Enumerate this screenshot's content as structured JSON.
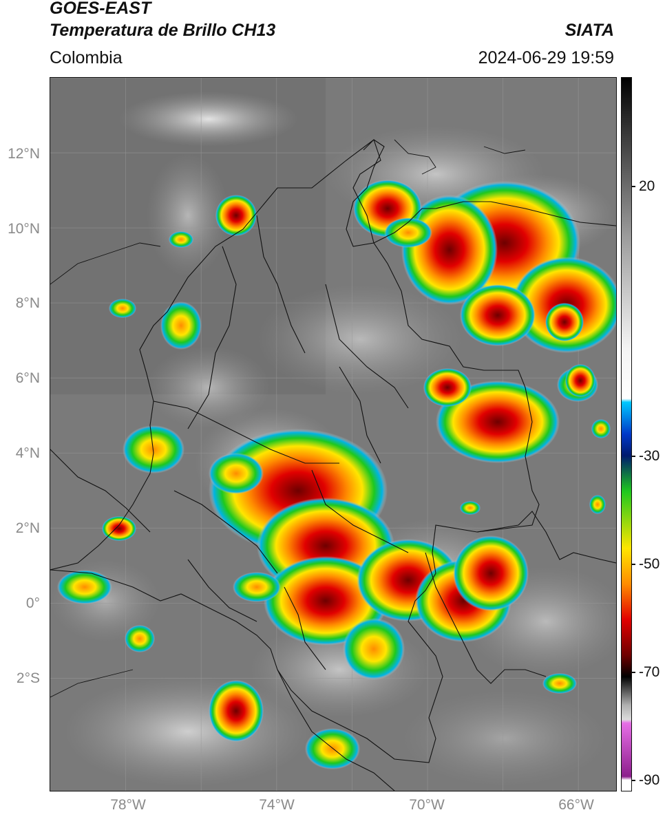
{
  "header": {
    "title_line1": "GOES-EAST",
    "title_line2": "Temperatura de Brillo CH13",
    "region": "Colombia",
    "organization": "SIATA",
    "timestamp": "2024-06-29 19:59"
  },
  "map": {
    "lat_ticks": [
      "12°N",
      "10°N",
      "8°N",
      "6°N",
      "4°N",
      "2°N",
      "0°",
      "2°S"
    ],
    "lon_ticks": [
      "78°W",
      "74°W",
      "70°W",
      "66°W"
    ],
    "lon_range": [
      -80,
      -65
    ],
    "lat_range": [
      -5,
      14
    ],
    "grid": true
  },
  "colorbar": {
    "ticks": [
      "20",
      "-30",
      "-50",
      "-70",
      "-90"
    ],
    "tick_values": [
      20,
      -30,
      -50,
      -70,
      -90
    ],
    "range": [
      -92,
      40
    ],
    "colors": {
      "warm_gray": "#6e6e6e",
      "cold_white": "#f4f4f4",
      "cyan": "#00c8ff",
      "blue": "#0038c8",
      "navy": "#001a6e",
      "green": "#1ec81e",
      "yellow": "#ffe600",
      "orange": "#ff8c00",
      "red": "#e10000",
      "dark_red": "#6e0000",
      "black": "#000000",
      "magenta": "#e66ee6",
      "purple": "#8c1e8c"
    }
  }
}
